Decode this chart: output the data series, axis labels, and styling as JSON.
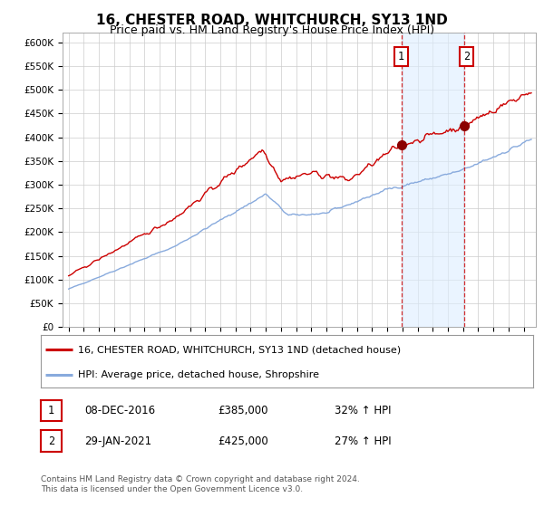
{
  "title": "16, CHESTER ROAD, WHITCHURCH, SY13 1ND",
  "subtitle": "Price paid vs. HM Land Registry's House Price Index (HPI)",
  "title_fontsize": 11,
  "subtitle_fontsize": 9,
  "ylabel_ticks": [
    "£0",
    "£50K",
    "£100K",
    "£150K",
    "£200K",
    "£250K",
    "£300K",
    "£350K",
    "£400K",
    "£450K",
    "£500K",
    "£550K",
    "£600K"
  ],
  "ytick_vals": [
    0,
    50000,
    100000,
    150000,
    200000,
    250000,
    300000,
    350000,
    400000,
    450000,
    500000,
    550000,
    600000
  ],
  "ylim": [
    0,
    620000
  ],
  "xlim_start": 1994.6,
  "xlim_end": 2025.8,
  "red_line_color": "#cc0000",
  "blue_line_color": "#88aadd",
  "marker_color": "#8b0000",
  "vline_color": "#cc0000",
  "shade_color": "#ddeeff",
  "annotation1": {
    "label": "1",
    "date_num": 2016.93,
    "value": 385000
  },
  "annotation2": {
    "label": "2",
    "date_num": 2021.08,
    "value": 425000
  },
  "legend_entries": [
    "16, CHESTER ROAD, WHITCHURCH, SY13 1ND (detached house)",
    "HPI: Average price, detached house, Shropshire"
  ],
  "table_rows": [
    {
      "num": "1",
      "date": "08-DEC-2016",
      "price": "£385,000",
      "change": "32% ↑ HPI"
    },
    {
      "num": "2",
      "date": "29-JAN-2021",
      "price": "£425,000",
      "change": "27% ↑ HPI"
    }
  ],
  "footer": "Contains HM Land Registry data © Crown copyright and database right 2024.\nThis data is licensed under the Open Government Licence v3.0.",
  "grid_color": "#cccccc",
  "background_color": "#ffffff"
}
